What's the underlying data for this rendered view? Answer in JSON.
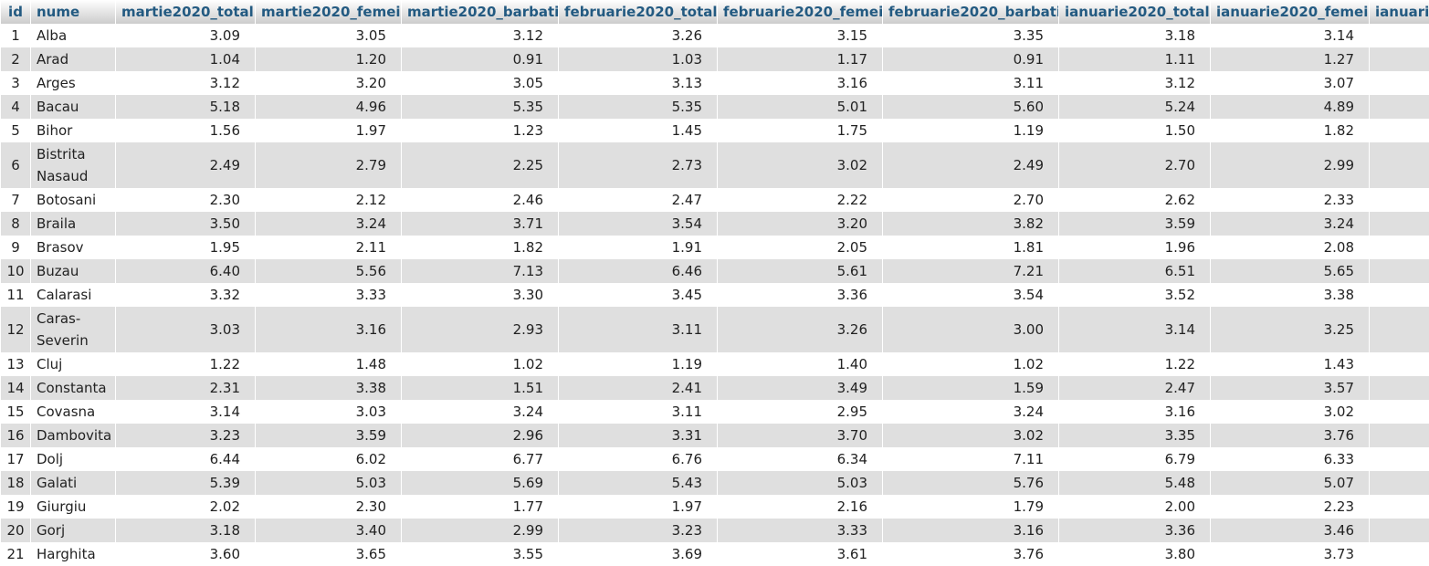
{
  "columns": [
    "id",
    "nume",
    "martie2020_total",
    "martie2020_femei",
    "martie2020_barbati",
    "februarie2020_total",
    "februarie2020_femei",
    "februarie2020_barbati",
    "ianuarie2020_total",
    "ianuarie2020_femei",
    "ianuari"
  ],
  "rows": [
    [
      "1",
      "Alba",
      "3.09",
      "3.05",
      "3.12",
      "3.26",
      "3.15",
      "3.35",
      "3.18",
      "3.14",
      ""
    ],
    [
      "2",
      "Arad",
      "1.04",
      "1.20",
      "0.91",
      "1.03",
      "1.17",
      "0.91",
      "1.11",
      "1.27",
      ""
    ],
    [
      "3",
      "Arges",
      "3.12",
      "3.20",
      "3.05",
      "3.13",
      "3.16",
      "3.11",
      "3.12",
      "3.07",
      ""
    ],
    [
      "4",
      "Bacau",
      "5.18",
      "4.96",
      "5.35",
      "5.35",
      "5.01",
      "5.60",
      "5.24",
      "4.89",
      ""
    ],
    [
      "5",
      "Bihor",
      "1.56",
      "1.97",
      "1.23",
      "1.45",
      "1.75",
      "1.19",
      "1.50",
      "1.82",
      ""
    ],
    [
      "6",
      "Bistrita Nasaud",
      "2.49",
      "2.79",
      "2.25",
      "2.73",
      "3.02",
      "2.49",
      "2.70",
      "2.99",
      ""
    ],
    [
      "7",
      "Botosani",
      "2.30",
      "2.12",
      "2.46",
      "2.47",
      "2.22",
      "2.70",
      "2.62",
      "2.33",
      ""
    ],
    [
      "8",
      "Braila",
      "3.50",
      "3.24",
      "3.71",
      "3.54",
      "3.20",
      "3.82",
      "3.59",
      "3.24",
      ""
    ],
    [
      "9",
      "Brasov",
      "1.95",
      "2.11",
      "1.82",
      "1.91",
      "2.05",
      "1.81",
      "1.96",
      "2.08",
      ""
    ],
    [
      "10",
      "Buzau",
      "6.40",
      "5.56",
      "7.13",
      "6.46",
      "5.61",
      "7.21",
      "6.51",
      "5.65",
      ""
    ],
    [
      "11",
      "Calarasi",
      "3.32",
      "3.33",
      "3.30",
      "3.45",
      "3.36",
      "3.54",
      "3.52",
      "3.38",
      ""
    ],
    [
      "12",
      "Caras-Severin",
      "3.03",
      "3.16",
      "2.93",
      "3.11",
      "3.26",
      "3.00",
      "3.14",
      "3.25",
      ""
    ],
    [
      "13",
      "Cluj",
      "1.22",
      "1.48",
      "1.02",
      "1.19",
      "1.40",
      "1.02",
      "1.22",
      "1.43",
      ""
    ],
    [
      "14",
      "Constanta",
      "2.31",
      "3.38",
      "1.51",
      "2.41",
      "3.49",
      "1.59",
      "2.47",
      "3.57",
      ""
    ],
    [
      "15",
      "Covasna",
      "3.14",
      "3.03",
      "3.24",
      "3.11",
      "2.95",
      "3.24",
      "3.16",
      "3.02",
      ""
    ],
    [
      "16",
      "Dambovita",
      "3.23",
      "3.59",
      "2.96",
      "3.31",
      "3.70",
      "3.02",
      "3.35",
      "3.76",
      ""
    ],
    [
      "17",
      "Dolj",
      "6.44",
      "6.02",
      "6.77",
      "6.76",
      "6.34",
      "7.11",
      "6.79",
      "6.33",
      ""
    ],
    [
      "18",
      "Galati",
      "5.39",
      "5.03",
      "5.69",
      "5.43",
      "5.03",
      "5.76",
      "5.48",
      "5.07",
      ""
    ],
    [
      "19",
      "Giurgiu",
      "2.02",
      "2.30",
      "1.77",
      "1.97",
      "2.16",
      "1.79",
      "2.00",
      "2.23",
      ""
    ],
    [
      "20",
      "Gorj",
      "3.18",
      "3.40",
      "2.99",
      "3.23",
      "3.33",
      "3.16",
      "3.36",
      "3.46",
      ""
    ],
    [
      "21",
      "Harghita",
      "3.60",
      "3.65",
      "3.55",
      "3.69",
      "3.61",
      "3.76",
      "3.80",
      "3.73",
      ""
    ]
  ],
  "colors": {
    "header_text": "#235a81",
    "row_even": "#dfdfdf",
    "row_odd": "#ffffff"
  }
}
